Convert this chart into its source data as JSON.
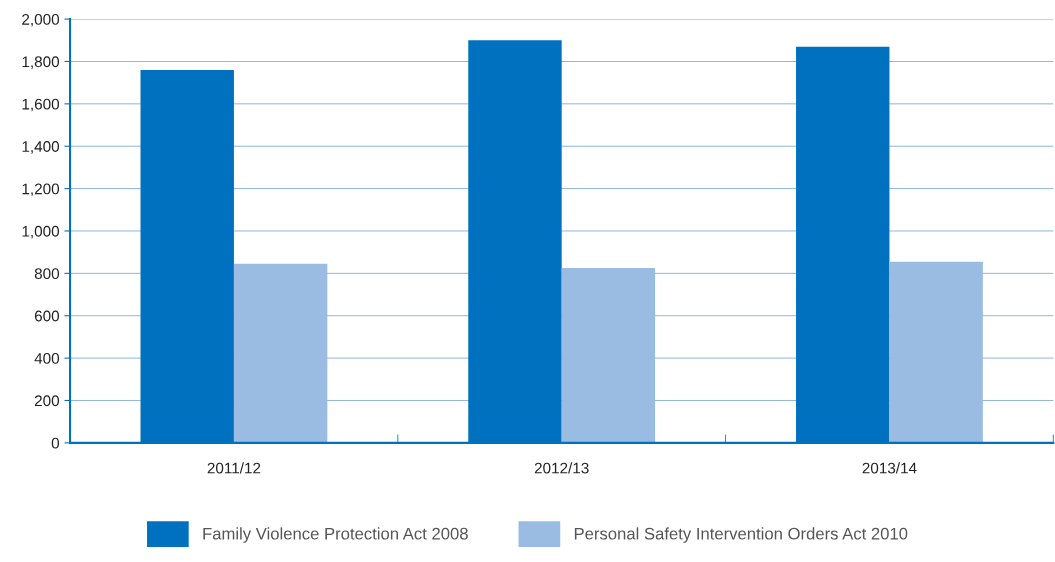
{
  "chart_data": {
    "type": "bar",
    "categories": [
      "2011/12",
      "2012/13",
      "2013/14"
    ],
    "series": [
      {
        "name": "Family Violence Protection Act 2008",
        "color": "#0071bf",
        "values": [
          1760,
          1900,
          1870
        ]
      },
      {
        "name": "Personal Safety Intervention Orders Act 2010",
        "color": "#9abce2",
        "values": [
          845,
          825,
          855
        ]
      }
    ],
    "ylim": [
      0,
      2000
    ],
    "yticks": [
      0,
      200,
      400,
      600,
      800,
      {
        "value": 1000,
        "label": "1,000"
      },
      {
        "value": 1200,
        "label": "1,200"
      },
      {
        "value": 1400,
        "label": "1,400"
      },
      {
        "value": 1600,
        "label": "1,600"
      },
      {
        "value": 1800,
        "label": "1,800"
      },
      {
        "value": 2000,
        "label": "2,000"
      }
    ],
    "grid": "y",
    "legend": "bottom"
  }
}
